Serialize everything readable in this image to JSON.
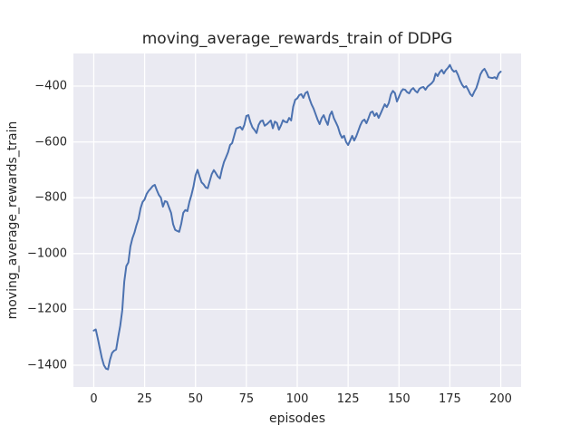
{
  "chart_data": {
    "type": "line",
    "title": "moving_average_rewards_train of DDPG",
    "xlabel": "episodes",
    "ylabel": "moving_average_rewards_train",
    "xticks": [
      0,
      25,
      50,
      75,
      100,
      125,
      150,
      175,
      200
    ],
    "yticks": [
      -400,
      -600,
      -800,
      -1000,
      -1200,
      -1400
    ],
    "xlim": [
      -10,
      210
    ],
    "ylim": [
      -1478,
      -283
    ],
    "grid": true,
    "legend": false,
    "colors": {
      "line": "#4C72B0",
      "plot_background": "#EAEAF2",
      "gridline": "#FFFFFF",
      "text": "#262626",
      "figure_background": "#FFFFFF"
    },
    "series": [
      {
        "name": "moving_average_rewards_train",
        "x_start": 0,
        "x_step": 1,
        "values": [
          -1276,
          -1272,
          -1305,
          -1340,
          -1375,
          -1400,
          -1412,
          -1415,
          -1380,
          -1356,
          -1348,
          -1344,
          -1300,
          -1259,
          -1204,
          -1100,
          -1045,
          -1032,
          -975,
          -945,
          -925,
          -898,
          -876,
          -838,
          -815,
          -806,
          -786,
          -775,
          -767,
          -758,
          -754,
          -773,
          -790,
          -800,
          -832,
          -812,
          -815,
          -835,
          -854,
          -895,
          -915,
          -919,
          -922,
          -893,
          -854,
          -844,
          -848,
          -815,
          -790,
          -760,
          -720,
          -700,
          -724,
          -745,
          -752,
          -763,
          -766,
          -740,
          -715,
          -701,
          -712,
          -724,
          -731,
          -698,
          -672,
          -655,
          -637,
          -611,
          -604,
          -578,
          -552,
          -549,
          -546,
          -556,
          -539,
          -507,
          -504,
          -530,
          -548,
          -557,
          -568,
          -539,
          -526,
          -523,
          -542,
          -537,
          -530,
          -523,
          -551,
          -527,
          -532,
          -556,
          -541,
          -522,
          -528,
          -530,
          -514,
          -523,
          -474,
          -449,
          -444,
          -432,
          -429,
          -442,
          -425,
          -420,
          -445,
          -465,
          -480,
          -500,
          -520,
          -536,
          -515,
          -504,
          -523,
          -539,
          -504,
          -491,
          -515,
          -530,
          -546,
          -570,
          -585,
          -578,
          -600,
          -611,
          -595,
          -578,
          -595,
          -580,
          -560,
          -540,
          -525,
          -520,
          -533,
          -515,
          -495,
          -491,
          -507,
          -497,
          -514,
          -498,
          -481,
          -465,
          -475,
          -460,
          -430,
          -417,
          -425,
          -455,
          -438,
          -420,
          -411,
          -413,
          -422,
          -426,
          -413,
          -407,
          -417,
          -423,
          -410,
          -405,
          -403,
          -413,
          -402,
          -396,
          -390,
          -381,
          -355,
          -364,
          -350,
          -342,
          -355,
          -343,
          -335,
          -324,
          -340,
          -348,
          -345,
          -360,
          -380,
          -395,
          -405,
          -400,
          -413,
          -428,
          -436,
          -420,
          -407,
          -384,
          -358,
          -345,
          -338,
          -351,
          -368,
          -370,
          -371,
          -368,
          -374,
          -355,
          -348
        ]
      }
    ]
  }
}
